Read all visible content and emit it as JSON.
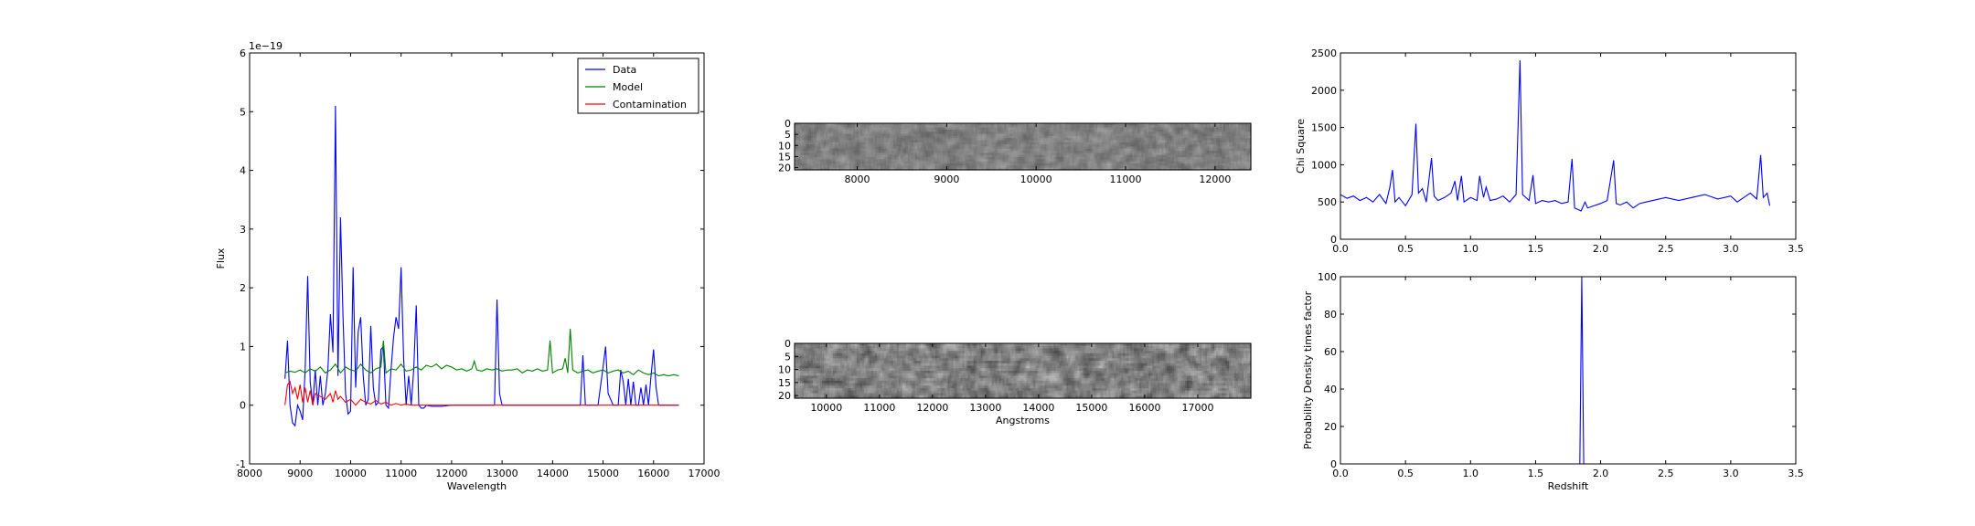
{
  "chart_data": [
    {
      "id": "spectrum",
      "type": "line",
      "xlabel": "Wavelength",
      "ylabel": "Flux",
      "offset_label": "1e−19",
      "xlim": [
        8000,
        17000
      ],
      "ylim": [
        -1,
        6
      ],
      "xticks": [
        8000,
        9000,
        10000,
        11000,
        12000,
        13000,
        14000,
        15000,
        16000,
        17000
      ],
      "yticks": [
        -1,
        0,
        1,
        2,
        3,
        4,
        5,
        6
      ],
      "legend_position": "top-right",
      "series": [
        {
          "name": "Data",
          "color": "#0000ff",
          "x": [
            8700,
            8750,
            8800,
            8850,
            8900,
            8950,
            9000,
            9050,
            9100,
            9150,
            9200,
            9250,
            9300,
            9350,
            9400,
            9450,
            9500,
            9550,
            9600,
            9650,
            9700,
            9750,
            9800,
            9850,
            9900,
            9950,
            10000,
            10050,
            10100,
            10150,
            10200,
            10250,
            10300,
            10350,
            10400,
            10450,
            10500,
            10550,
            10600,
            10650,
            10700,
            10750,
            10800,
            10850,
            10900,
            10950,
            11000,
            11050,
            11100,
            11150,
            11200,
            11250,
            11300,
            11350,
            11400,
            11450,
            11500,
            11600,
            11700,
            11800,
            11900,
            12000,
            12100,
            12300,
            12500,
            12700,
            12850,
            12900,
            12950,
            13000,
            13100,
            13300,
            13600,
            14000,
            14400,
            14550,
            14600,
            14650,
            14700,
            14900,
            15000,
            15050,
            15100,
            15200,
            15300,
            15350,
            15400,
            15450,
            15500,
            15550,
            15600,
            15650,
            15700,
            15750,
            15800,
            15850,
            15900,
            15950,
            16000,
            16050,
            16100,
            16200,
            16300,
            16400,
            16500
          ],
          "y": [
            0.45,
            1.1,
            0.0,
            -0.3,
            -0.35,
            0.0,
            -0.1,
            -0.25,
            0.6,
            2.2,
            0.4,
            0.0,
            0.6,
            0.0,
            0.5,
            0.0,
            0.2,
            0.6,
            1.55,
            0.9,
            5.1,
            0.5,
            3.2,
            1.5,
            0.2,
            -0.15,
            -0.1,
            2.35,
            0.3,
            1.25,
            1.5,
            0.5,
            0.0,
            0.1,
            1.35,
            0.3,
            0.0,
            0.05,
            0.95,
            1.0,
            0.0,
            -0.05,
            0.6,
            1.15,
            1.5,
            1.3,
            2.35,
            0.8,
            0.0,
            0.5,
            0.0,
            0.6,
            1.7,
            0.0,
            -0.05,
            -0.05,
            0.0,
            -0.02,
            -0.02,
            -0.02,
            -0.01,
            0.0,
            0.0,
            0.0,
            0.0,
            0.0,
            0.0,
            1.8,
            0.2,
            0.0,
            0.0,
            0.0,
            0.0,
            0.0,
            0.0,
            0.0,
            0.85,
            0.0,
            0.0,
            0.0,
            0.65,
            1.0,
            0.2,
            0.0,
            0.0,
            0.6,
            0.4,
            0.0,
            0.45,
            0.0,
            0.4,
            0.0,
            0.0,
            0.3,
            0.0,
            0.35,
            0.0,
            0.5,
            0.95,
            0.3,
            0.0,
            0.0,
            0.0,
            0.0,
            0.0
          ]
        },
        {
          "name": "Model",
          "color": "#008000",
          "x": [
            8700,
            8800,
            8900,
            9000,
            9100,
            9200,
            9300,
            9400,
            9500,
            9600,
            9700,
            9800,
            9900,
            10000,
            10100,
            10200,
            10300,
            10400,
            10500,
            10600,
            10650,
            10700,
            10800,
            10900,
            11000,
            11100,
            11200,
            11300,
            11400,
            11500,
            11600,
            11700,
            11800,
            11900,
            12000,
            12100,
            12200,
            12300,
            12400,
            12450,
            12500,
            12600,
            12700,
            12800,
            12900,
            13000,
            13100,
            13200,
            13300,
            13400,
            13500,
            13600,
            13700,
            13800,
            13900,
            13950,
            14000,
            14100,
            14200,
            14250,
            14300,
            14350,
            14400,
            14500,
            14600,
            14700,
            14800,
            14900,
            15000,
            15100,
            15200,
            15300,
            15400,
            15500,
            15600,
            15700,
            15800,
            15900,
            16000,
            16100,
            16200,
            16300,
            16400,
            16500
          ],
          "y": [
            0.55,
            0.58,
            0.56,
            0.6,
            0.55,
            0.62,
            0.58,
            0.65,
            0.55,
            0.6,
            0.7,
            0.55,
            0.65,
            0.6,
            0.58,
            0.7,
            0.6,
            0.55,
            0.62,
            0.65,
            1.1,
            0.55,
            0.62,
            0.6,
            0.7,
            0.58,
            0.6,
            0.65,
            0.6,
            0.68,
            0.65,
            0.7,
            0.62,
            0.68,
            0.65,
            0.6,
            0.62,
            0.58,
            0.62,
            0.75,
            0.6,
            0.58,
            0.62,
            0.6,
            0.62,
            0.58,
            0.6,
            0.6,
            0.62,
            0.55,
            0.6,
            0.58,
            0.62,
            0.58,
            0.6,
            1.1,
            0.55,
            0.6,
            0.62,
            0.8,
            0.55,
            1.3,
            0.6,
            0.55,
            0.58,
            0.6,
            0.55,
            0.58,
            0.6,
            0.55,
            0.58,
            0.6,
            0.55,
            0.58,
            0.52,
            0.6,
            0.55,
            0.52,
            0.55,
            0.5,
            0.52,
            0.5,
            0.52,
            0.5
          ]
        },
        {
          "name": "Contamination",
          "color": "#ff0000",
          "x": [
            8700,
            8750,
            8800,
            8850,
            8900,
            8950,
            9000,
            9050,
            9100,
            9150,
            9200,
            9250,
            9300,
            9400,
            9500,
            9600,
            9650,
            9700,
            9750,
            9800,
            9900,
            10000,
            10100,
            10200,
            10300,
            10400,
            10500,
            10600,
            10700,
            10800,
            10900,
            11000,
            11100,
            11200,
            11400,
            11600,
            11800,
            12000,
            12500,
            13000,
            14000,
            15000,
            16000,
            16500
          ],
          "y": [
            0.0,
            0.35,
            0.4,
            0.2,
            0.3,
            0.1,
            0.35,
            0.05,
            0.3,
            0.05,
            0.25,
            0.0,
            0.2,
            0.15,
            0.1,
            0.2,
            0.05,
            0.25,
            0.1,
            0.15,
            0.05,
            0.1,
            0.0,
            0.1,
            0.05,
            0.02,
            0.08,
            0.02,
            0.05,
            0.0,
            0.03,
            0.0,
            0.02,
            0.0,
            0.0,
            0.0,
            0.0,
            0.0,
            0.0,
            0.0,
            0.0,
            0.0,
            0.0,
            0.0
          ]
        }
      ]
    },
    {
      "id": "image-top",
      "type": "heatmap",
      "colormap": "gray",
      "xlim": [
        7300,
        12400
      ],
      "ylim": [
        0,
        21
      ],
      "xticks": [
        8000,
        9000,
        10000,
        11000,
        12000
      ],
      "yticks": [
        0,
        5,
        10,
        15,
        20
      ],
      "xlabel": ""
    },
    {
      "id": "image-bottom",
      "type": "heatmap",
      "colormap": "gray",
      "xlim": [
        9400,
        18000
      ],
      "ylim": [
        0,
        21
      ],
      "xticks": [
        10000,
        11000,
        12000,
        13000,
        14000,
        15000,
        16000,
        17000
      ],
      "yticks": [
        0,
        5,
        10,
        15,
        20
      ],
      "xlabel": "Angstroms"
    },
    {
      "id": "chisq",
      "type": "line",
      "xlabel": "",
      "ylabel": "Chi Square",
      "xlim": [
        0.0,
        3.5
      ],
      "ylim": [
        0,
        2500
      ],
      "xticks": [
        0.0,
        0.5,
        1.0,
        1.5,
        2.0,
        2.5,
        3.0,
        3.5
      ],
      "yticks": [
        0,
        500,
        1000,
        1500,
        2000,
        2500
      ],
      "series": [
        {
          "color": "#0000ff",
          "x": [
            0.0,
            0.05,
            0.1,
            0.15,
            0.2,
            0.25,
            0.3,
            0.35,
            0.38,
            0.4,
            0.42,
            0.45,
            0.5,
            0.55,
            0.58,
            0.6,
            0.63,
            0.66,
            0.7,
            0.72,
            0.75,
            0.8,
            0.85,
            0.88,
            0.9,
            0.93,
            0.95,
            1.0,
            1.05,
            1.07,
            1.1,
            1.12,
            1.15,
            1.2,
            1.25,
            1.3,
            1.35,
            1.38,
            1.4,
            1.45,
            1.48,
            1.5,
            1.55,
            1.6,
            1.65,
            1.7,
            1.75,
            1.78,
            1.8,
            1.85,
            1.88,
            1.9,
            1.95,
            2.0,
            2.05,
            2.1,
            2.12,
            2.15,
            2.2,
            2.25,
            2.3,
            2.35,
            2.4,
            2.5,
            2.6,
            2.7,
            2.8,
            2.9,
            3.0,
            3.05,
            3.1,
            3.15,
            3.2,
            3.23,
            3.25,
            3.28,
            3.3
          ],
          "y": [
            600,
            550,
            580,
            520,
            560,
            500,
            600,
            480,
            700,
            930,
            500,
            560,
            450,
            600,
            1550,
            620,
            680,
            500,
            1090,
            580,
            520,
            560,
            620,
            780,
            520,
            850,
            500,
            560,
            520,
            850,
            560,
            700,
            520,
            540,
            580,
            500,
            600,
            2400,
            600,
            520,
            860,
            480,
            520,
            500,
            520,
            480,
            500,
            1080,
            420,
            380,
            500,
            420,
            450,
            480,
            520,
            1060,
            480,
            460,
            500,
            420,
            480,
            500,
            520,
            560,
            520,
            560,
            600,
            540,
            580,
            500,
            560,
            620,
            540,
            1130,
            560,
            620,
            450
          ]
        }
      ]
    },
    {
      "id": "pdf",
      "type": "line",
      "xlabel": "Redshift",
      "ylabel": "Probability Density times factor",
      "xlim": [
        0.0,
        3.5
      ],
      "ylim": [
        0,
        100
      ],
      "xticks": [
        0.0,
        0.5,
        1.0,
        1.5,
        2.0,
        2.5,
        3.0,
        3.5
      ],
      "yticks": [
        0,
        20,
        40,
        60,
        80,
        100
      ],
      "series": [
        {
          "color": "#0000ff",
          "x": [
            0.0,
            1.8,
            1.84,
            1.855,
            1.87,
            1.9,
            3.3
          ],
          "y": [
            0,
            0,
            0,
            100,
            0,
            0,
            0
          ]
        }
      ]
    }
  ]
}
